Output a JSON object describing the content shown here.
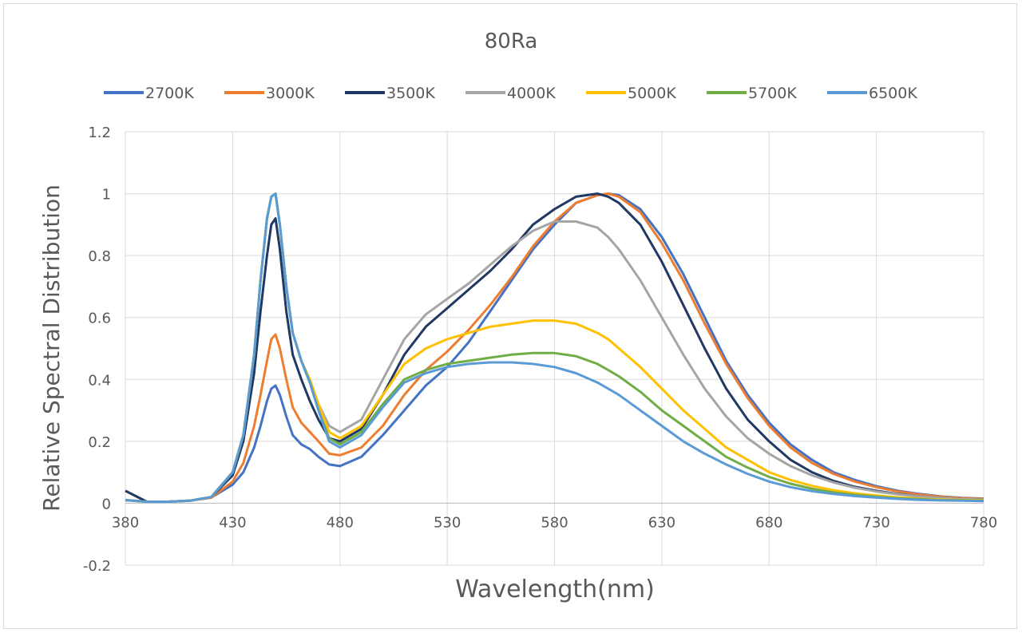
{
  "chart_data": {
    "type": "line",
    "title": "80Ra",
    "xlabel": "Wavelength(nm)",
    "ylabel": "Relative Spectral Distribution",
    "xlim": [
      380,
      780
    ],
    "ylim": [
      -0.2,
      1.2
    ],
    "x_ticks": [
      380,
      430,
      480,
      530,
      580,
      630,
      680,
      730,
      780
    ],
    "y_ticks": [
      -0.2,
      0,
      0.2,
      0.4,
      0.6,
      0.8,
      1,
      1.2
    ],
    "x_tick_labels": [
      "380",
      "430",
      "480",
      "530",
      "580",
      "630",
      "680",
      "730",
      "780"
    ],
    "y_tick_labels": [
      "-0.2",
      "0",
      "0.2",
      "0.4",
      "0.6",
      "0.8",
      "1",
      "1.2"
    ],
    "grid": true,
    "legend_position": "top",
    "x": [
      380,
      390,
      400,
      410,
      420,
      430,
      435,
      440,
      443,
      446,
      448,
      450,
      452,
      455,
      458,
      462,
      466,
      470,
      475,
      480,
      490,
      500,
      510,
      520,
      530,
      540,
      550,
      560,
      570,
      580,
      590,
      600,
      605,
      610,
      620,
      630,
      640,
      650,
      660,
      670,
      680,
      690,
      700,
      710,
      720,
      730,
      740,
      750,
      760,
      770,
      780
    ],
    "series": [
      {
        "name": "2700K",
        "color": "#4472C4",
        "values": [
          0.01,
          0.005,
          0.005,
          0.008,
          0.018,
          0.06,
          0.1,
          0.18,
          0.25,
          0.33,
          0.37,
          0.38,
          0.35,
          0.28,
          0.22,
          0.19,
          0.175,
          0.15,
          0.125,
          0.12,
          0.15,
          0.22,
          0.3,
          0.38,
          0.44,
          0.52,
          0.62,
          0.72,
          0.82,
          0.9,
          0.97,
          0.995,
          1,
          0.995,
          0.95,
          0.86,
          0.74,
          0.6,
          0.46,
          0.35,
          0.26,
          0.19,
          0.14,
          0.1,
          0.075,
          0.055,
          0.04,
          0.03,
          0.022,
          0.017,
          0.015
        ]
      },
      {
        "name": "3000K",
        "color": "#ED7D31",
        "values": [
          0.01,
          0.005,
          0.005,
          0.008,
          0.018,
          0.07,
          0.13,
          0.25,
          0.35,
          0.46,
          0.53,
          0.545,
          0.5,
          0.4,
          0.31,
          0.26,
          0.23,
          0.2,
          0.16,
          0.155,
          0.18,
          0.25,
          0.35,
          0.43,
          0.49,
          0.56,
          0.64,
          0.73,
          0.83,
          0.91,
          0.97,
          0.995,
          1,
          0.99,
          0.94,
          0.84,
          0.72,
          0.58,
          0.45,
          0.34,
          0.25,
          0.18,
          0.13,
          0.095,
          0.07,
          0.052,
          0.038,
          0.028,
          0.021,
          0.016,
          0.014
        ]
      },
      {
        "name": "3500K",
        "color": "#203864",
        "values": [
          0.04,
          0.005,
          0.005,
          0.008,
          0.02,
          0.09,
          0.2,
          0.42,
          0.62,
          0.8,
          0.9,
          0.92,
          0.82,
          0.62,
          0.48,
          0.4,
          0.33,
          0.27,
          0.21,
          0.2,
          0.24,
          0.35,
          0.48,
          0.57,
          0.63,
          0.69,
          0.75,
          0.82,
          0.9,
          0.95,
          0.99,
          1,
          0.99,
          0.97,
          0.9,
          0.78,
          0.64,
          0.5,
          0.37,
          0.27,
          0.2,
          0.14,
          0.1,
          0.072,
          0.053,
          0.04,
          0.03,
          0.022,
          0.017,
          0.013,
          0.012
        ]
      },
      {
        "name": "4000K",
        "color": "#A5A5A5",
        "values": [
          0.01,
          0.005,
          0.005,
          0.008,
          0.02,
          0.1,
          0.22,
          0.48,
          0.72,
          0.92,
          0.99,
          1,
          0.9,
          0.7,
          0.55,
          0.46,
          0.39,
          0.32,
          0.25,
          0.23,
          0.27,
          0.4,
          0.53,
          0.61,
          0.66,
          0.71,
          0.77,
          0.83,
          0.88,
          0.91,
          0.91,
          0.89,
          0.86,
          0.82,
          0.72,
          0.6,
          0.48,
          0.37,
          0.28,
          0.21,
          0.16,
          0.12,
          0.09,
          0.067,
          0.05,
          0.038,
          0.029,
          0.022,
          0.017,
          0.013,
          0.012
        ]
      },
      {
        "name": "5000K",
        "color": "#FFC000",
        "values": [
          0.01,
          0.005,
          0.005,
          0.008,
          0.02,
          0.1,
          0.22,
          0.48,
          0.72,
          0.92,
          0.99,
          1,
          0.9,
          0.7,
          0.55,
          0.46,
          0.4,
          0.32,
          0.23,
          0.21,
          0.25,
          0.35,
          0.45,
          0.5,
          0.53,
          0.55,
          0.57,
          0.58,
          0.59,
          0.59,
          0.58,
          0.55,
          0.53,
          0.5,
          0.44,
          0.37,
          0.3,
          0.24,
          0.18,
          0.14,
          0.1,
          0.075,
          0.056,
          0.042,
          0.032,
          0.025,
          0.019,
          0.015,
          0.012,
          0.01,
          0.01
        ]
      },
      {
        "name": "5700K",
        "color": "#70AD47",
        "values": [
          0.01,
          0.005,
          0.005,
          0.008,
          0.02,
          0.1,
          0.22,
          0.48,
          0.72,
          0.92,
          0.99,
          1,
          0.9,
          0.7,
          0.55,
          0.46,
          0.39,
          0.3,
          0.21,
          0.19,
          0.23,
          0.32,
          0.4,
          0.43,
          0.45,
          0.46,
          0.47,
          0.48,
          0.485,
          0.485,
          0.475,
          0.45,
          0.43,
          0.41,
          0.36,
          0.3,
          0.25,
          0.2,
          0.15,
          0.115,
          0.085,
          0.063,
          0.047,
          0.035,
          0.027,
          0.021,
          0.016,
          0.013,
          0.01,
          0.009,
          0.008
        ]
      },
      {
        "name": "6500K",
        "color": "#5B9BD5",
        "values": [
          0.01,
          0.005,
          0.005,
          0.008,
          0.02,
          0.1,
          0.22,
          0.48,
          0.72,
          0.92,
          0.99,
          1,
          0.9,
          0.7,
          0.55,
          0.46,
          0.39,
          0.3,
          0.2,
          0.18,
          0.22,
          0.31,
          0.39,
          0.42,
          0.44,
          0.45,
          0.455,
          0.455,
          0.45,
          0.44,
          0.42,
          0.39,
          0.37,
          0.35,
          0.3,
          0.25,
          0.2,
          0.16,
          0.125,
          0.095,
          0.07,
          0.052,
          0.039,
          0.03,
          0.023,
          0.018,
          0.014,
          0.011,
          0.009,
          0.008,
          0.007
        ]
      }
    ]
  }
}
